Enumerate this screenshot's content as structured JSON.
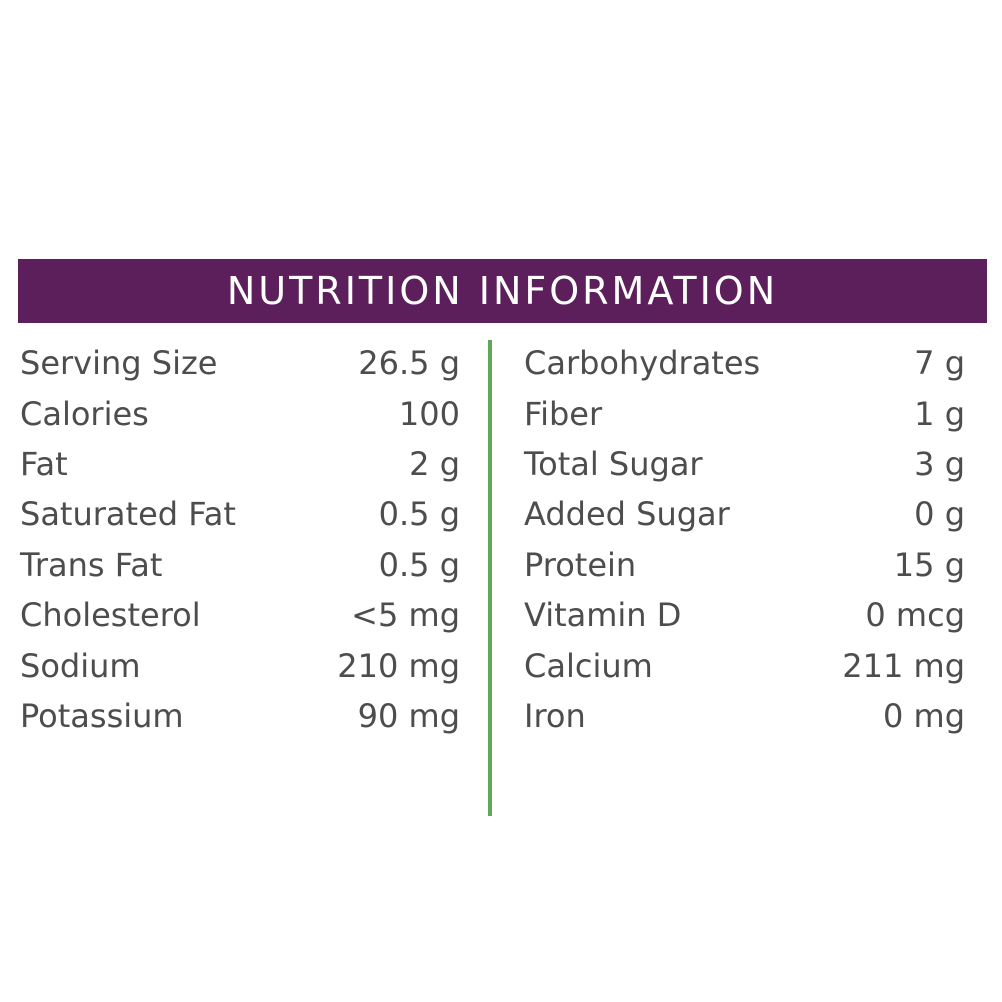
{
  "colors": {
    "brand": "#5c1f5c",
    "accent": "#5fa85a",
    "text": "#4d4d4d"
  },
  "header": {
    "title": "NUTRITION INFORMATION"
  },
  "left_column": [
    {
      "label": "Serving Size",
      "value": "26.5 g"
    },
    {
      "label": "Calories",
      "value": "100"
    },
    {
      "label": "Fat",
      "value": "2 g"
    },
    {
      "label": "Saturated Fat",
      "value": "0.5 g"
    },
    {
      "label": "Trans Fat",
      "value": "0.5 g"
    },
    {
      "label": "Cholesterol",
      "value": "<5 mg"
    },
    {
      "label": "Sodium",
      "value": "210 mg"
    },
    {
      "label": "Potassium",
      "value": "90 mg"
    }
  ],
  "right_column": [
    {
      "label": "Carbohydrates",
      "value": "7 g"
    },
    {
      "label": "Fiber",
      "value": "1 g"
    },
    {
      "label": "Total Sugar",
      "value": "3 g"
    },
    {
      "label": "Added Sugar",
      "value": "0 g"
    },
    {
      "label": "Protein",
      "value": "15 g"
    },
    {
      "label": "Vitamin D",
      "value": "0 mcg"
    },
    {
      "label": "Calcium",
      "value": "211 mg"
    },
    {
      "label": "Iron",
      "value": "0 mg"
    }
  ]
}
